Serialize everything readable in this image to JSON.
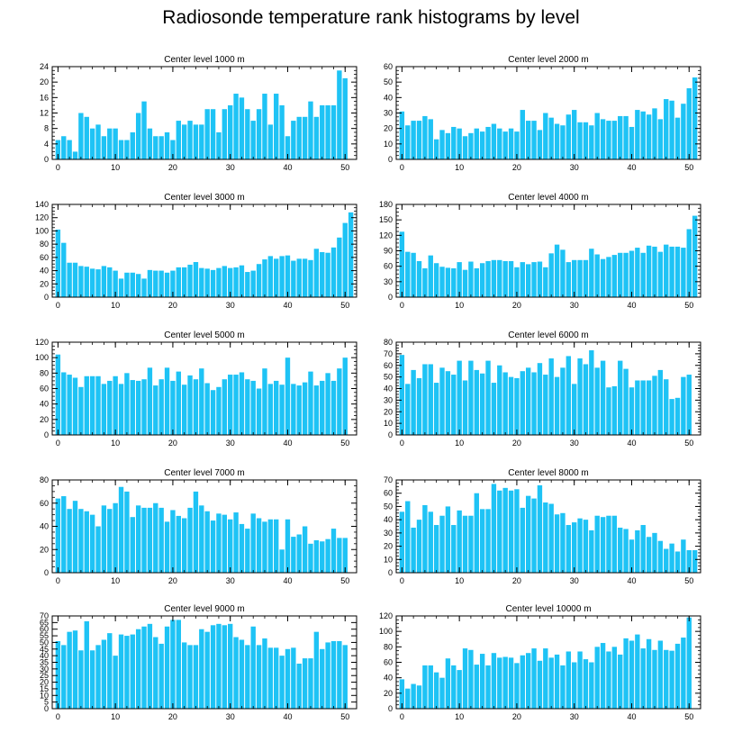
{
  "figure": {
    "title": "Radiosonde temperature rank histograms by level"
  },
  "colors": {
    "bar": "#1ec3f5",
    "axis": "#000000",
    "background": "#ffffff"
  },
  "chart_data": [
    {
      "type": "bar",
      "title": "Center level 1000 m",
      "xlim": [
        -1,
        52
      ],
      "ylim": [
        0,
        24
      ],
      "xticks": [
        0,
        10,
        20,
        30,
        40,
        50
      ],
      "yticks": [
        0,
        4,
        8,
        12,
        16,
        20,
        24
      ],
      "values": [
        5,
        6,
        5,
        2,
        12,
        11,
        8,
        9,
        6,
        8,
        8,
        5,
        5,
        7,
        12,
        15,
        8,
        6,
        6,
        7,
        5,
        10,
        9,
        10,
        9,
        9,
        13,
        13,
        7,
        13,
        14,
        17,
        16,
        13,
        10,
        13,
        17,
        9,
        17,
        14,
        6,
        10,
        11,
        11,
        15,
        11,
        14,
        14,
        14,
        23,
        21
      ]
    },
    {
      "type": "bar",
      "title": "Center level 2000 m",
      "xlim": [
        -1,
        52
      ],
      "ylim": [
        0,
        60
      ],
      "xticks": [
        0,
        10,
        20,
        30,
        40,
        50
      ],
      "yticks": [
        0,
        10,
        20,
        30,
        40,
        50,
        60
      ],
      "values": [
        31,
        22,
        25,
        25,
        28,
        26,
        13,
        19,
        17,
        21,
        20,
        15,
        17,
        20,
        18,
        21,
        23,
        20,
        18,
        20,
        18,
        32,
        25,
        25,
        19,
        30,
        27,
        23,
        22,
        29,
        32,
        24,
        24,
        22,
        30,
        26,
        25,
        25,
        28,
        28,
        21,
        32,
        31,
        29,
        33,
        26,
        39,
        38,
        27,
        36,
        46,
        53
      ]
    },
    {
      "type": "bar",
      "title": "Center level 3000 m",
      "xlim": [
        -1,
        52
      ],
      "ylim": [
        0,
        140
      ],
      "xticks": [
        0,
        10,
        20,
        30,
        40,
        50
      ],
      "yticks": [
        0,
        20,
        40,
        60,
        80,
        100,
        120,
        140
      ],
      "values": [
        102,
        82,
        52,
        52,
        47,
        46,
        43,
        42,
        47,
        45,
        40,
        28,
        37,
        37,
        35,
        28,
        41,
        40,
        40,
        37,
        40,
        45,
        45,
        49,
        53,
        44,
        43,
        41,
        44,
        47,
        44,
        45,
        48,
        38,
        40,
        50,
        57,
        62,
        58,
        62,
        63,
        55,
        58,
        58,
        56,
        73,
        68,
        67,
        75,
        90,
        112,
        128
      ]
    },
    {
      "type": "bar",
      "title": "Center level 4000 m",
      "xlim": [
        -1,
        52
      ],
      "ylim": [
        0,
        180
      ],
      "xticks": [
        0,
        10,
        20,
        30,
        40,
        50
      ],
      "yticks": [
        0,
        30,
        60,
        90,
        120,
        150,
        180
      ],
      "values": [
        127,
        88,
        86,
        70,
        56,
        81,
        66,
        59,
        57,
        56,
        68,
        53,
        69,
        56,
        66,
        70,
        72,
        72,
        70,
        70,
        58,
        68,
        64,
        68,
        69,
        58,
        85,
        102,
        92,
        68,
        72,
        72,
        72,
        94,
        83,
        74,
        78,
        82,
        86,
        86,
        90,
        96,
        86,
        100,
        98,
        88,
        102,
        98,
        98,
        96,
        132,
        158
      ]
    },
    {
      "type": "bar",
      "title": "Center level 5000 m",
      "xlim": [
        -1,
        52
      ],
      "ylim": [
        0,
        120
      ],
      "xticks": [
        0,
        10,
        20,
        30,
        40,
        50
      ],
      "yticks": [
        0,
        20,
        40,
        60,
        80,
        100,
        120
      ],
      "values": [
        104,
        81,
        78,
        74,
        62,
        76,
        76,
        76,
        66,
        70,
        76,
        66,
        80,
        71,
        70,
        72,
        87,
        64,
        72,
        87,
        70,
        82,
        65,
        77,
        72,
        86,
        67,
        58,
        62,
        72,
        78,
        78,
        81,
        72,
        70,
        60,
        86,
        66,
        70,
        65,
        100,
        66,
        64,
        68,
        82,
        64,
        70,
        80,
        70,
        86,
        100
      ]
    },
    {
      "type": "bar",
      "title": "Center level 6000 m",
      "xlim": [
        -1,
        52
      ],
      "ylim": [
        0,
        80
      ],
      "xticks": [
        0,
        10,
        20,
        30,
        40,
        50
      ],
      "yticks": [
        0,
        10,
        20,
        30,
        40,
        50,
        60,
        70,
        80
      ],
      "values": [
        69,
        44,
        56,
        49,
        61,
        61,
        45,
        58,
        55,
        52,
        64,
        47,
        64,
        56,
        53,
        64,
        45,
        60,
        54,
        50,
        49,
        55,
        58,
        54,
        62,
        52,
        66,
        50,
        58,
        68,
        44,
        66,
        61,
        73,
        58,
        64,
        41,
        42,
        64,
        57,
        41,
        47,
        47,
        47,
        51,
        56,
        48,
        31,
        32,
        50,
        52
      ]
    },
    {
      "type": "bar",
      "title": "Center level 7000 m",
      "xlim": [
        -1,
        52
      ],
      "ylim": [
        0,
        80
      ],
      "xticks": [
        0,
        10,
        20,
        30,
        40,
        50
      ],
      "yticks": [
        0,
        20,
        40,
        60,
        80
      ],
      "values": [
        64,
        66,
        55,
        62,
        55,
        53,
        50,
        40,
        58,
        55,
        60,
        74,
        70,
        48,
        58,
        56,
        56,
        60,
        56,
        44,
        54,
        49,
        47,
        56,
        70,
        58,
        53,
        45,
        51,
        50,
        46,
        52,
        42,
        38,
        51,
        47,
        44,
        46,
        46,
        20,
        46,
        31,
        33,
        40,
        25,
        28,
        27,
        29,
        38,
        30,
        30
      ]
    },
    {
      "type": "bar",
      "title": "Center level 8000 m",
      "xlim": [
        -1,
        52
      ],
      "ylim": [
        0,
        70
      ],
      "xticks": [
        0,
        10,
        20,
        30,
        40,
        50
      ],
      "yticks": [
        0,
        10,
        20,
        30,
        40,
        50,
        60,
        70
      ],
      "values": [
        46,
        54,
        34,
        40,
        51,
        46,
        36,
        43,
        50,
        36,
        47,
        43,
        43,
        60,
        48,
        48,
        67,
        62,
        64,
        62,
        63,
        49,
        58,
        56,
        66,
        53,
        52,
        44,
        45,
        36,
        38,
        41,
        40,
        32,
        43,
        42,
        43,
        43,
        34,
        33,
        25,
        32,
        36,
        27,
        30,
        24,
        18,
        22,
        16,
        25,
        17,
        17
      ]
    },
    {
      "type": "bar",
      "title": "Center level 9000 m",
      "xlim": [
        -1,
        52
      ],
      "ylim": [
        0,
        70
      ],
      "xticks": [
        0,
        10,
        20,
        30,
        40,
        50
      ],
      "yticks": [
        0,
        5,
        10,
        15,
        20,
        25,
        30,
        35,
        40,
        45,
        50,
        55,
        60,
        65,
        70
      ],
      "values": [
        51,
        48,
        58,
        59,
        44,
        66,
        44,
        48,
        52,
        57,
        40,
        56,
        55,
        56,
        60,
        62,
        64,
        54,
        49,
        62,
        67,
        67,
        50,
        48,
        48,
        60,
        58,
        63,
        64,
        63,
        64,
        54,
        52,
        48,
        62,
        48,
        53,
        46,
        46,
        40,
        45,
        46,
        34,
        38,
        38,
        58,
        45,
        50,
        51,
        51,
        48
      ]
    },
    {
      "type": "bar",
      "title": "Center level 10000 m",
      "xlim": [
        -1,
        52
      ],
      "ylim": [
        0,
        120
      ],
      "xticks": [
        0,
        10,
        20,
        30,
        40,
        50
      ],
      "yticks": [
        0,
        20,
        40,
        60,
        80,
        100,
        120
      ],
      "values": [
        38,
        26,
        32,
        30,
        56,
        56,
        47,
        40,
        65,
        56,
        50,
        78,
        76,
        57,
        71,
        56,
        72,
        66,
        67,
        66,
        59,
        69,
        72,
        78,
        62,
        78,
        66,
        70,
        56,
        74,
        60,
        74,
        64,
        60,
        80,
        85,
        74,
        80,
        70,
        91,
        88,
        96,
        78,
        90,
        76,
        88,
        76,
        75,
        84,
        92,
        118
      ]
    }
  ]
}
